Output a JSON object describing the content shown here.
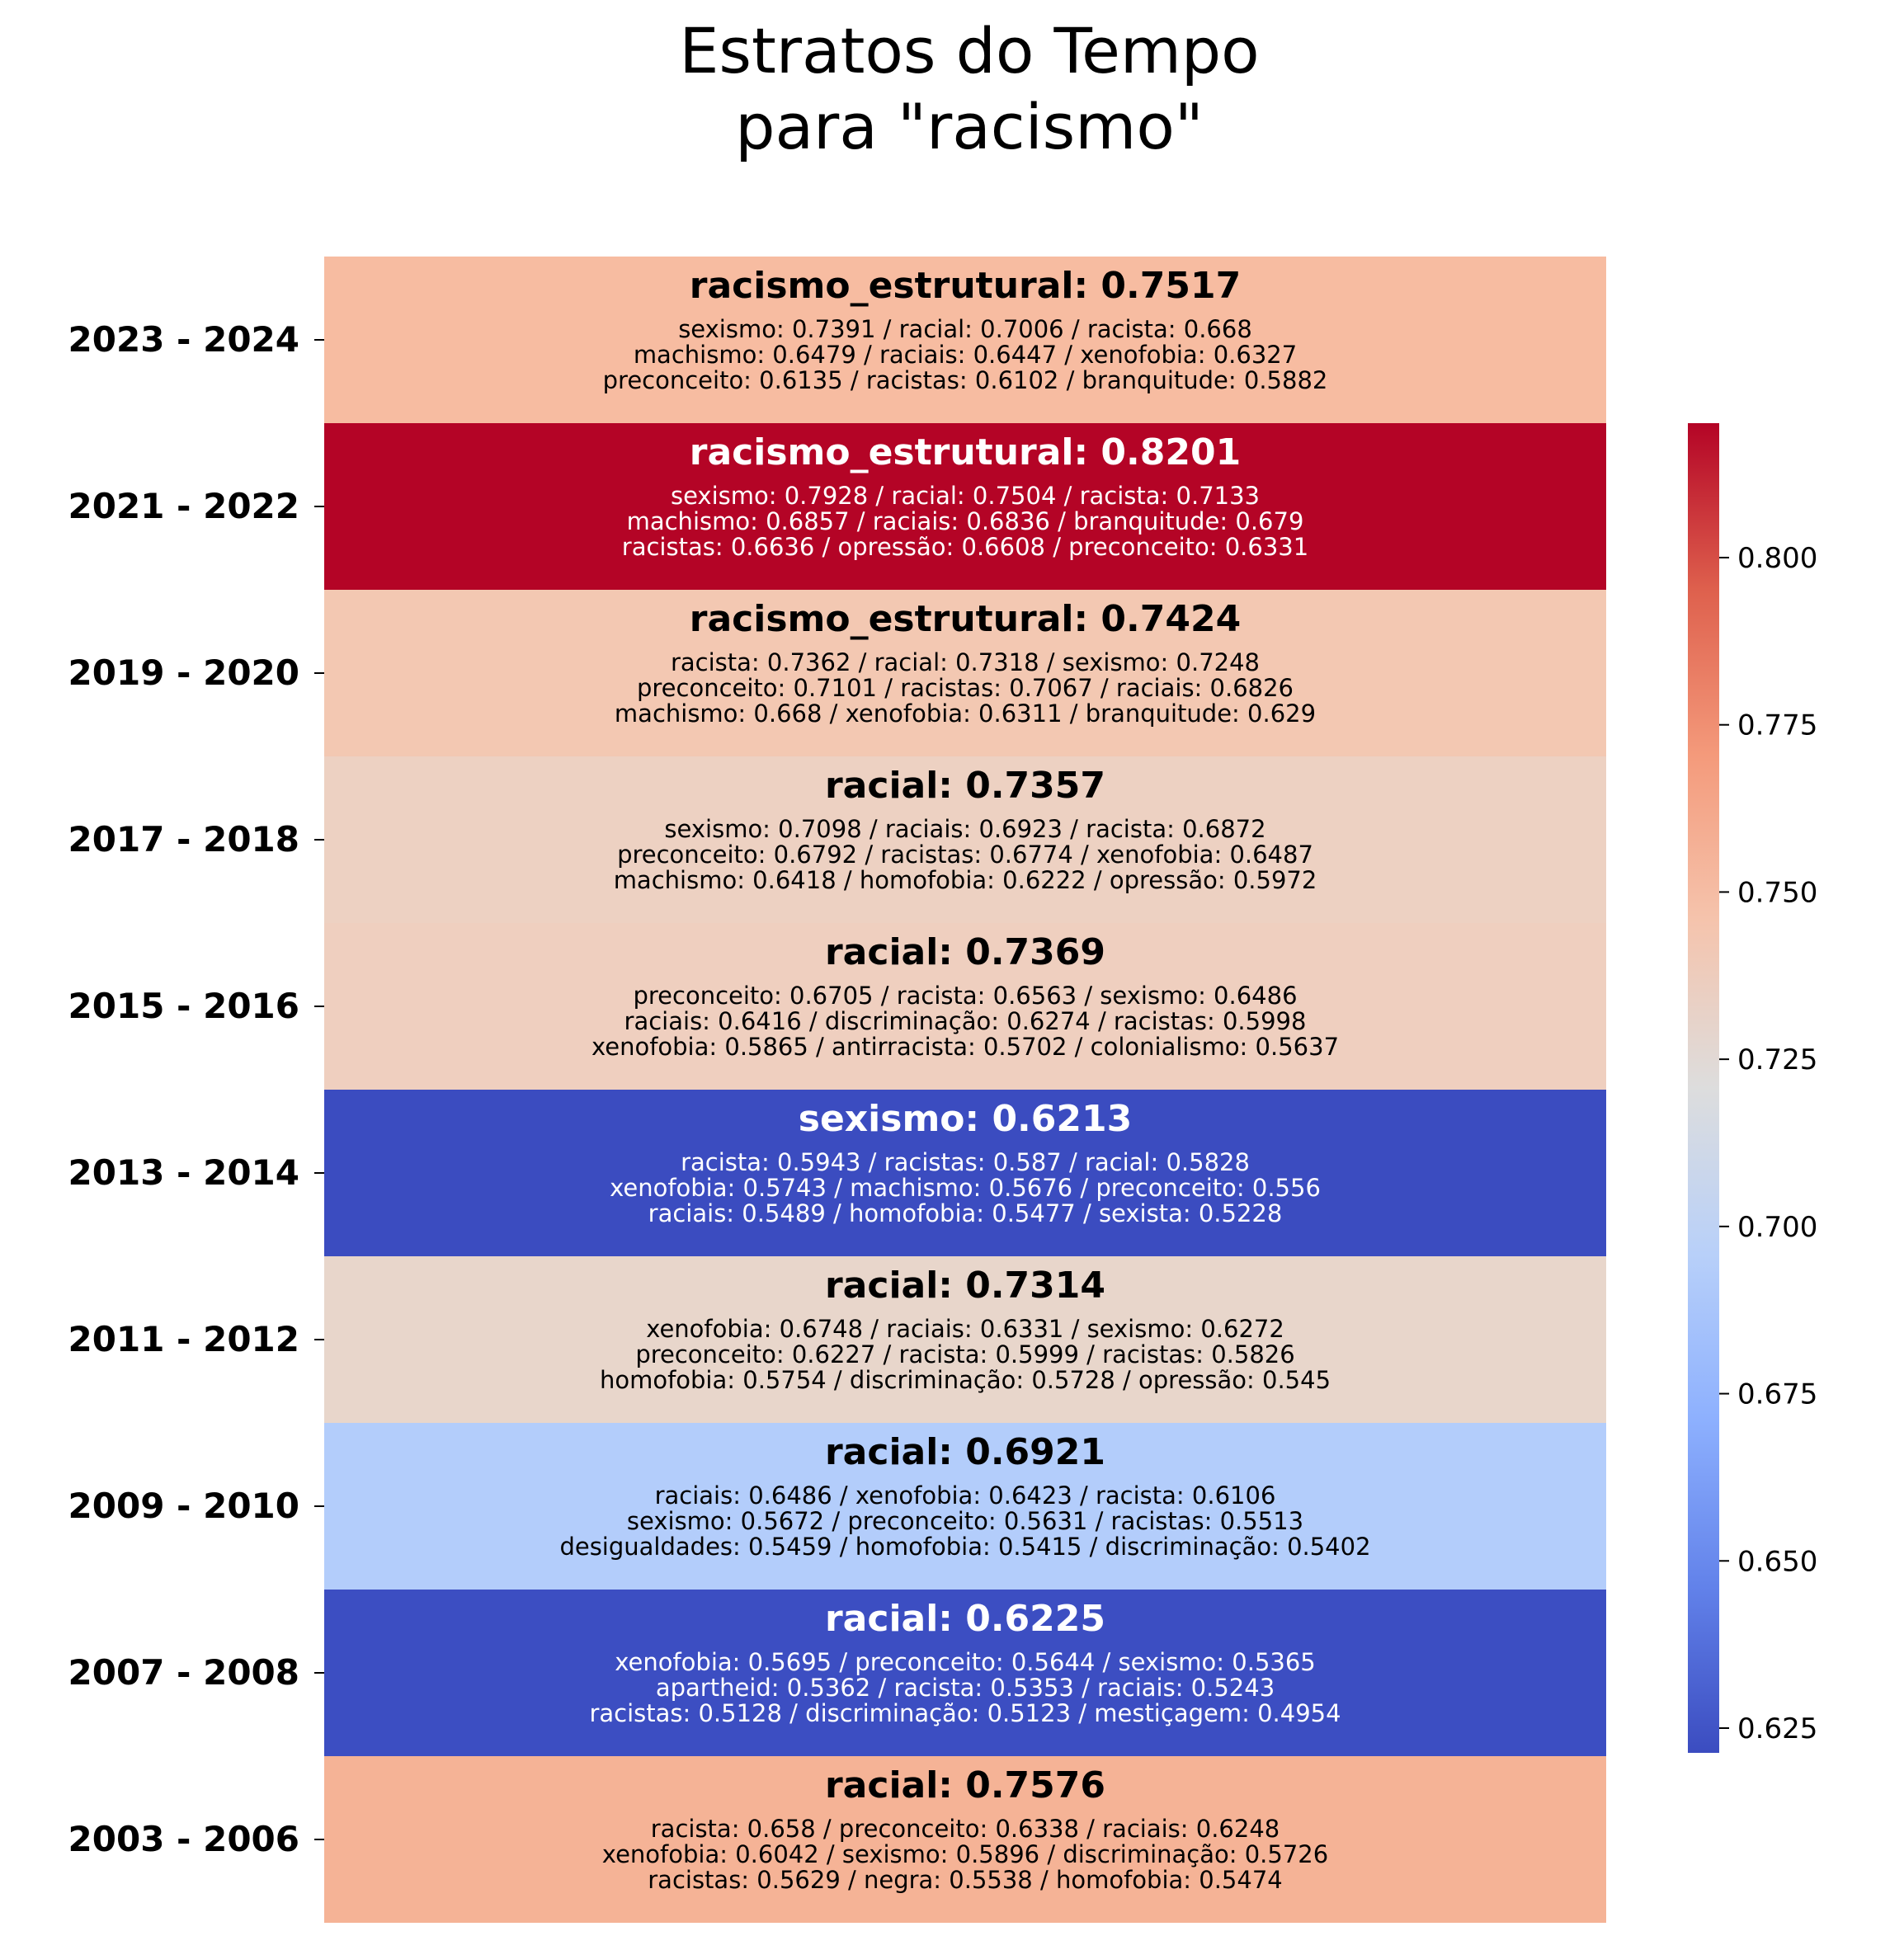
{
  "chart_data": {
    "type": "heatmap",
    "title": "Estratos do Tempo\npara \"racismo\"",
    "xlabel": "",
    "ylabel": "",
    "colormap": "coolwarm",
    "colorbar": {
      "vmin": 0.6213,
      "vmax": 0.8201,
      "ticks": [
        "0.625",
        "0.650",
        "0.675",
        "0.700",
        "0.725",
        "0.750",
        "0.775",
        "0.800"
      ],
      "tick_values": [
        0.625,
        0.65,
        0.675,
        0.7,
        0.725,
        0.75,
        0.775,
        0.8
      ],
      "placement": "right"
    },
    "rows": [
      {
        "period": "2023 - 2024",
        "value": 0.7517,
        "color": "#f7bca1",
        "text_color": "#000000",
        "top_term": "racismo_estrutural: 0.7517",
        "lines": [
          "sexismo: 0.7391 / racial: 0.7006 / racista: 0.668",
          "machismo: 0.6479 / raciais: 0.6447 / xenofobia: 0.6327",
          "preconceito: 0.6135 / racistas: 0.6102 / branquitude: 0.5882"
        ]
      },
      {
        "period": "2021 - 2022",
        "value": 0.8201,
        "color": "#b40426",
        "text_color": "#ffffff",
        "top_term": "racismo_estrutural: 0.8201",
        "lines": [
          "sexismo: 0.7928 / racial: 0.7504 / racista: 0.7133",
          "machismo: 0.6857 / raciais: 0.6836 / branquitude: 0.679",
          "racistas: 0.6636 / opressão: 0.6608 / preconceito: 0.6331"
        ]
      },
      {
        "period": "2019 - 2020",
        "value": 0.7424,
        "color": "#f3c8b2",
        "text_color": "#000000",
        "top_term": "racismo_estrutural: 0.7424",
        "lines": [
          "racista: 0.7362 / racial: 0.7318 / sexismo: 0.7248",
          "preconceito: 0.7101 / racistas: 0.7067 / raciais: 0.6826",
          "machismo: 0.668 / xenofobia: 0.6311 / branquitude: 0.629"
        ]
      },
      {
        "period": "2017 - 2018",
        "value": 0.7357,
        "color": "#edd1c2",
        "text_color": "#000000",
        "top_term": "racial: 0.7357",
        "lines": [
          "sexismo: 0.7098 / raciais: 0.6923 / racista: 0.6872",
          "preconceito: 0.6792 / racistas: 0.6774 / xenofobia: 0.6487",
          "machismo: 0.6418 / homofobia: 0.6222 / opressão: 0.5972"
        ]
      },
      {
        "period": "2015 - 2016",
        "value": 0.7369,
        "color": "#efcfbf",
        "text_color": "#000000",
        "top_term": "racial: 0.7369",
        "lines": [
          "preconceito: 0.6705 / racista: 0.6563 / sexismo: 0.6486",
          "raciais: 0.6416 / discriminação: 0.6274 / racistas: 0.5998",
          "xenofobia: 0.5865 / antirracista: 0.5702 / colonialismo: 0.5637"
        ]
      },
      {
        "period": "2013 - 2014",
        "value": 0.6213,
        "color": "#3b4cc0",
        "text_color": "#ffffff",
        "top_term": "sexismo: 0.6213",
        "lines": [
          "racista: 0.5943 / racistas: 0.587 / racial: 0.5828",
          "xenofobia: 0.5743 / machismo: 0.5676 / preconceito: 0.556",
          "raciais: 0.5489 / homofobia: 0.5477 / sexista: 0.5228"
        ]
      },
      {
        "period": "2011 - 2012",
        "value": 0.7314,
        "color": "#e8d6cb",
        "text_color": "#000000",
        "top_term": "racial: 0.7314",
        "lines": [
          "xenofobia: 0.6748 / raciais: 0.6331 / sexismo: 0.6272",
          "preconceito: 0.6227 / racista: 0.5999 / racistas: 0.5826",
          "homofobia: 0.5754 / discriminação: 0.5728 / opressão: 0.545"
        ]
      },
      {
        "period": "2009 - 2010",
        "value": 0.6921,
        "color": "#b3cdfb",
        "text_color": "#000000",
        "top_term": "racial: 0.6921",
        "lines": [
          "raciais: 0.6486 / xenofobia: 0.6423 / racista: 0.6106",
          "sexismo: 0.5672 / preconceito: 0.5631 / racistas: 0.5513",
          "desigualdades: 0.5459 / homofobia: 0.5415 / discriminação: 0.5402"
        ]
      },
      {
        "period": "2007 - 2008",
        "value": 0.6225,
        "color": "#3c4ec2",
        "text_color": "#ffffff",
        "top_term": "racial: 0.6225",
        "lines": [
          "xenofobia: 0.5695 / preconceito: 0.5644 / sexismo: 0.5365",
          "apartheid: 0.5362 / racista: 0.5353 / raciais: 0.5243",
          "racistas: 0.5128 / discriminação: 0.5123 / mestiçagem: 0.4954"
        ]
      },
      {
        "period": "2003 - 2006",
        "value": 0.7576,
        "color": "#f5b396",
        "text_color": "#000000",
        "top_term": "racial: 0.7576",
        "lines": [
          "racista: 0.658 / preconceito: 0.6338 / raciais: 0.6248",
          "xenofobia: 0.6042 / sexismo: 0.5896 / discriminação: 0.5726",
          "racistas: 0.5629 / negra: 0.5538 / homofobia: 0.5474"
        ]
      }
    ]
  }
}
